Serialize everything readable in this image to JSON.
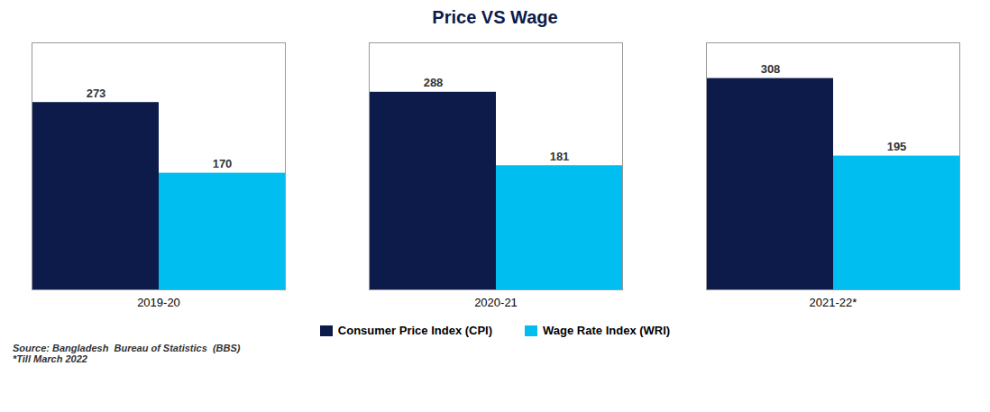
{
  "chart_data": {
    "type": "bar",
    "title": "Price VS Wage",
    "categories": [
      "2019-20",
      "2020-21",
      "2021-22*"
    ],
    "series": [
      {
        "name": "Consumer Price Index (CPI)",
        "color": "#0d1b4b",
        "values": [
          273,
          288,
          308
        ]
      },
      {
        "name": "Wage Rate Index (WRI)",
        "color": "#00bef0",
        "values": [
          170,
          181,
          195
        ]
      }
    ],
    "ylim": [
      0,
      360
    ],
    "grid": false,
    "legend": "bottom",
    "data_labels": true,
    "tick_labels": "x",
    "annotations": [
      "Source: Bangladesh  Bureau of Statistics  (BBS)",
      "*Till March 2022"
    ]
  }
}
